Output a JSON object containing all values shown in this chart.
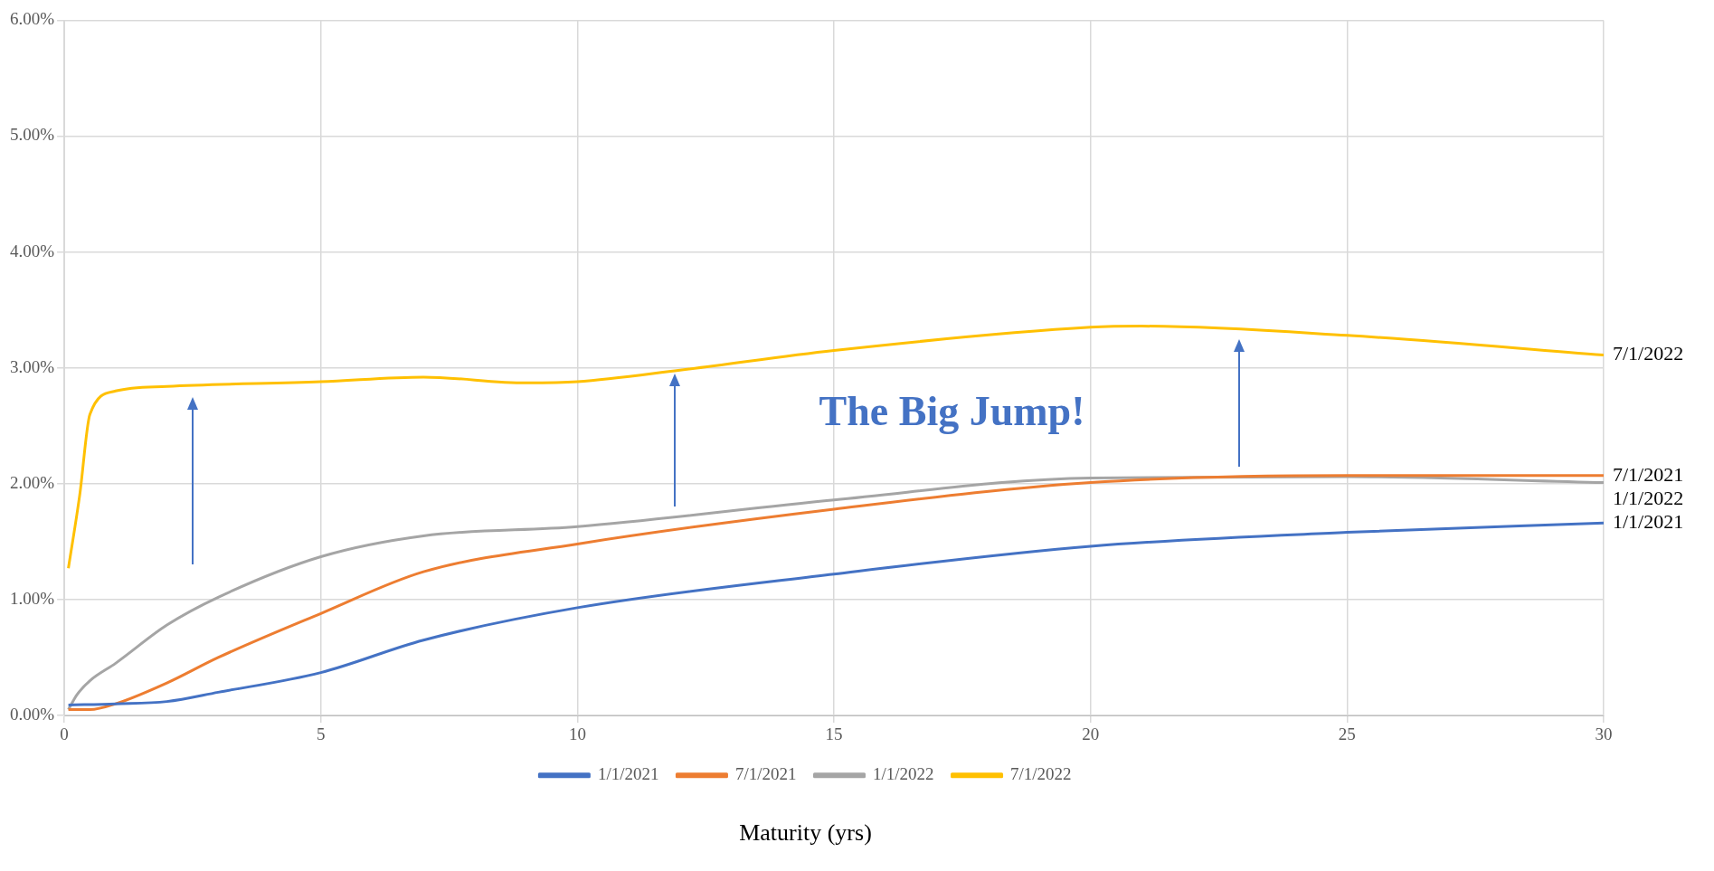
{
  "chart_data": {
    "type": "line",
    "xlabel": "Maturity (yrs)",
    "annotations": [
      "The Big Jump!"
    ],
    "xlim": [
      0,
      30
    ],
    "xticks": [
      0,
      5,
      10,
      15,
      20,
      25,
      30
    ],
    "ylim": [
      0,
      6
    ],
    "yticks": [
      {
        "value": 0,
        "label": "0.00%"
      },
      {
        "value": 1,
        "label": "1.00%"
      },
      {
        "value": 2,
        "label": "2.00%"
      },
      {
        "value": 3,
        "label": "3.00%"
      },
      {
        "value": 4,
        "label": "4.00%"
      },
      {
        "value": 5,
        "label": "5.00%"
      },
      {
        "value": 6,
        "label": "6.00%"
      }
    ],
    "grid": true,
    "legend": "bottom",
    "marker": "none",
    "line_style": "solid",
    "series": [
      {
        "name": "1/1/2021",
        "color": "#4472c4",
        "x": [
          0.08,
          1,
          2,
          3,
          5,
          7,
          10,
          15,
          20,
          25,
          30
        ],
        "values": [
          0.09,
          0.1,
          0.12,
          0.2,
          0.37,
          0.65,
          0.93,
          1.22,
          1.46,
          1.58,
          1.66
        ]
      },
      {
        "name": "7/1/2021",
        "color": "#ed7d31",
        "x": [
          0.08,
          0.5,
          1,
          2,
          3,
          5,
          7,
          10,
          15,
          20,
          25,
          30
        ],
        "values": [
          0.05,
          0.05,
          0.1,
          0.28,
          0.5,
          0.88,
          1.24,
          1.48,
          1.78,
          2.01,
          2.07,
          2.07
        ]
      },
      {
        "name": "1/1/2022",
        "color": "#a5a5a5",
        "x": [
          0.08,
          0.25,
          0.5,
          1,
          2,
          3,
          5,
          7,
          10,
          15,
          20,
          25,
          30
        ],
        "values": [
          0.05,
          0.18,
          0.3,
          0.45,
          0.78,
          1.02,
          1.37,
          1.55,
          1.63,
          1.86,
          2.05,
          2.06,
          2.01
        ]
      },
      {
        "name": "7/1/2022",
        "color": "#ffc000",
        "x": [
          0.08,
          0.3,
          0.5,
          1,
          2,
          5,
          7,
          9,
          10,
          12,
          15,
          20,
          21,
          25,
          30
        ],
        "values": [
          1.27,
          1.9,
          2.6,
          2.8,
          2.84,
          2.88,
          2.92,
          2.87,
          2.88,
          2.98,
          3.15,
          3.35,
          3.36,
          3.28,
          3.11
        ]
      }
    ]
  }
}
